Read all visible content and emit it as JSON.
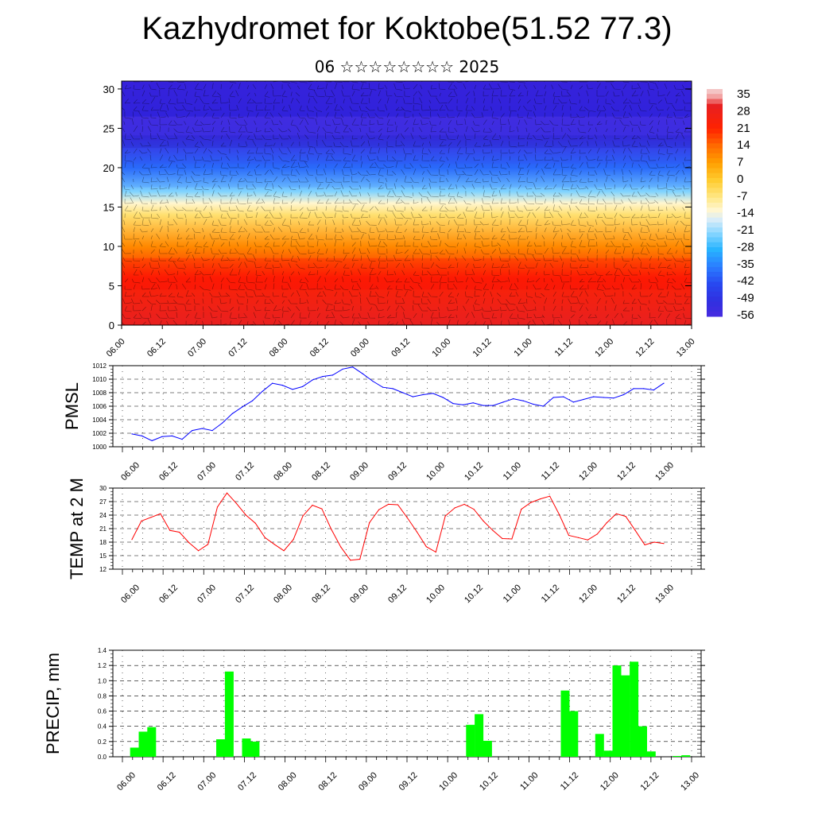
{
  "header": {
    "title": "Kazhydromet for Koktobe(51.52 77.3)",
    "subtitle": "06 ☆☆☆☆☆☆☆☆ 2025"
  },
  "chart_data": [
    {
      "type": "heatmap",
      "name": "temperature-wind-cross-section",
      "title": "",
      "ylim": [
        0,
        31
      ],
      "yticks": [
        0,
        5,
        10,
        15,
        20,
        25,
        30
      ],
      "xticks": [
        "06.00",
        "06.12",
        "07.00",
        "07.12",
        "08.00",
        "08.12",
        "09.00",
        "09.12",
        "10.00",
        "10.12",
        "11.00",
        "11.12",
        "12.00",
        "12.12",
        "13.00"
      ],
      "colorbar": {
        "labels": [
          "35",
          "28",
          "21",
          "14",
          "7",
          "0",
          "-7",
          "-14",
          "-21",
          "-28",
          "-35",
          "-42",
          "-49",
          "-56"
        ],
        "colors": [
          "#f2c0c0",
          "#e8342e",
          "#ff2a00",
          "#ff7a00",
          "#ffb000",
          "#ffd84a",
          "#fff0a0",
          "#d8ecf8",
          "#7ad0ff",
          "#1ea8ff",
          "#2a62ff",
          "#3434e8",
          "#4a2ae0",
          "#7a38f0"
        ]
      },
      "profile": {
        "levels": [
          0,
          6,
          10,
          14,
          15.5,
          17,
          20,
          24,
          31
        ],
        "temps": [
          30,
          22,
          10,
          -5,
          -12,
          -22,
          -38,
          -52,
          -56
        ]
      }
    },
    {
      "type": "line",
      "name": "pmsl",
      "ylabel": "PMSL",
      "ylim": [
        1000,
        1012
      ],
      "yticks": [
        1000,
        1002,
        1004,
        1006,
        1008,
        1010,
        1012
      ],
      "xticks": [
        "06.00",
        "06.12",
        "07.00",
        "07.12",
        "08.00",
        "08.12",
        "09.00",
        "09.12",
        "10.00",
        "10.12",
        "11.00",
        "11.12",
        "12.00",
        "12.12",
        "13.00"
      ],
      "color": "#0000ff",
      "values": [
        1001.9,
        1001.6,
        1000.9,
        1001.5,
        1001.6,
        1001.1,
        1002.4,
        1002.7,
        1002.4,
        1003.5,
        1004.9,
        1005.9,
        1006.8,
        1008.2,
        1009.4,
        1009.1,
        1008.5,
        1008.9,
        1009.9,
        1010.4,
        1010.6,
        1011.5,
        1011.8,
        1010.8,
        1009.7,
        1008.8,
        1008.6,
        1008.0,
        1007.4,
        1007.7,
        1007.9,
        1007.3,
        1006.4,
        1006.2,
        1006.5,
        1006.1,
        1006.1,
        1006.6,
        1007.1,
        1006.8,
        1006.3,
        1006.0,
        1007.3,
        1007.4,
        1006.6,
        1007.0,
        1007.4,
        1007.3,
        1007.2,
        1007.7,
        1008.6,
        1008.6,
        1008.4,
        1009.4
      ]
    },
    {
      "type": "line",
      "name": "temp2m",
      "ylabel": "TEMP at 2 M",
      "ylim": [
        12,
        30
      ],
      "yticks": [
        12,
        15,
        18,
        21,
        24,
        27,
        30
      ],
      "xticks": [
        "06.00",
        "06.12",
        "07.00",
        "07.12",
        "08.00",
        "08.12",
        "09.00",
        "09.12",
        "10.00",
        "10.12",
        "11.00",
        "11.12",
        "12.00",
        "12.12",
        "13.00"
      ],
      "color": "#ff0000",
      "values": [
        18.6,
        22.7,
        23.5,
        24.3,
        20.6,
        20.2,
        17.9,
        16.1,
        17.5,
        25.8,
        28.9,
        26.6,
        24.0,
        22.2,
        19.0,
        17.5,
        16.1,
        18.6,
        23.8,
        26.2,
        25.4,
        20.8,
        16.9,
        14.0,
        14.2,
        22.3,
        25.2,
        26.4,
        26.3,
        23.4,
        20.3,
        17.0,
        15.8,
        23.8,
        25.6,
        26.4,
        25.3,
        22.7,
        20.6,
        18.8,
        18.7,
        25.3,
        26.8,
        27.6,
        28.2,
        24.1,
        19.5,
        19.0,
        18.5,
        19.8,
        22.3,
        24.3,
        23.7,
        20.6,
        17.4,
        18.0,
        17.7
      ]
    },
    {
      "type": "bar",
      "name": "precip",
      "ylabel": "PRECIP, mm",
      "ylim": [
        0,
        1.4
      ],
      "yticks": [
        "0.0",
        "0.2",
        "0.4",
        "0.6",
        "0.8",
        "1.0",
        "1.2",
        "1.4"
      ],
      "xticks": [
        "06.00",
        "06.12",
        "07.00",
        "07.12",
        "08.00",
        "08.12",
        "09.00",
        "09.12",
        "10.00",
        "10.12",
        "11.00",
        "11.12",
        "12.00",
        "12.12",
        "13.00"
      ],
      "color": "#00ff00",
      "values": [
        0,
        0,
        0.12,
        0.33,
        0.39,
        0,
        0,
        0,
        0,
        0,
        0,
        0,
        0.23,
        1.12,
        0,
        0.24,
        0.2,
        0,
        0,
        0,
        0,
        0,
        0,
        0,
        0,
        0,
        0,
        0,
        0,
        0,
        0,
        0,
        0,
        0,
        0,
        0,
        0,
        0,
        0,
        0,
        0,
        0.42,
        0.56,
        0.21,
        0,
        0,
        0,
        0,
        0,
        0,
        0,
        0,
        0.87,
        0.6,
        0,
        0,
        0.3,
        0.08,
        1.2,
        1.07,
        1.25,
        0.4,
        0.07,
        0,
        0,
        0.01,
        0.02
      ]
    }
  ]
}
